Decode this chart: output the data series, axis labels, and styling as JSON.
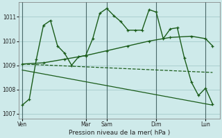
{
  "background_color": "#ceeaea",
  "grid_color": "#aacfcf",
  "line_color": "#1a5c1a",
  "sep_color": "#4a6a6a",
  "xlabel": "Pression niveau de la mer( hPa )",
  "ylim": [
    1006.8,
    1011.6
  ],
  "yticks": [
    1007,
    1008,
    1009,
    1010,
    1011
  ],
  "x_tick_labels": [
    "Ven",
    "Mar",
    "Sam",
    "Dim",
    "Lun"
  ],
  "x_tick_pos": [
    0,
    9,
    12,
    19,
    26
  ],
  "x_sep_pos": [
    0,
    9,
    12,
    19,
    26
  ],
  "xlim": [
    -0.5,
    28
  ],
  "series": [
    {
      "x": [
        0,
        1,
        2,
        3,
        4,
        5,
        6,
        7,
        8,
        9,
        10,
        11,
        12,
        13,
        14,
        15,
        16,
        17,
        18,
        19,
        20,
        21,
        22,
        23,
        24,
        25,
        26,
        27
      ],
      "y": [
        1007.35,
        1007.6,
        1009.25,
        1010.65,
        1010.85,
        1009.8,
        1009.5,
        1009.0,
        1009.35,
        1009.4,
        1010.1,
        1011.15,
        1011.35,
        1011.05,
        1010.8,
        1010.45,
        1010.45,
        1010.45,
        1011.3,
        1011.2,
        1010.1,
        1010.5,
        1010.55,
        1009.3,
        1008.3,
        1007.75,
        1008.05,
        1007.4
      ],
      "lw": 1.0,
      "ls": "-",
      "marker": "+"
    },
    {
      "x": [
        0,
        3,
        6,
        9,
        12,
        15,
        18,
        21,
        24,
        26,
        27
      ],
      "y": [
        1009.05,
        1009.1,
        1009.25,
        1009.4,
        1009.6,
        1009.8,
        1010.0,
        1010.15,
        1010.2,
        1010.1,
        1009.8
      ],
      "lw": 1.0,
      "ls": "-",
      "marker": "+"
    },
    {
      "x": [
        0,
        27
      ],
      "y": [
        1009.05,
        1008.7
      ],
      "lw": 0.9,
      "ls": "--",
      "marker": null
    },
    {
      "x": [
        0,
        27
      ],
      "y": [
        1008.8,
        1007.35
      ],
      "lw": 0.9,
      "ls": "-",
      "marker": null
    }
  ]
}
